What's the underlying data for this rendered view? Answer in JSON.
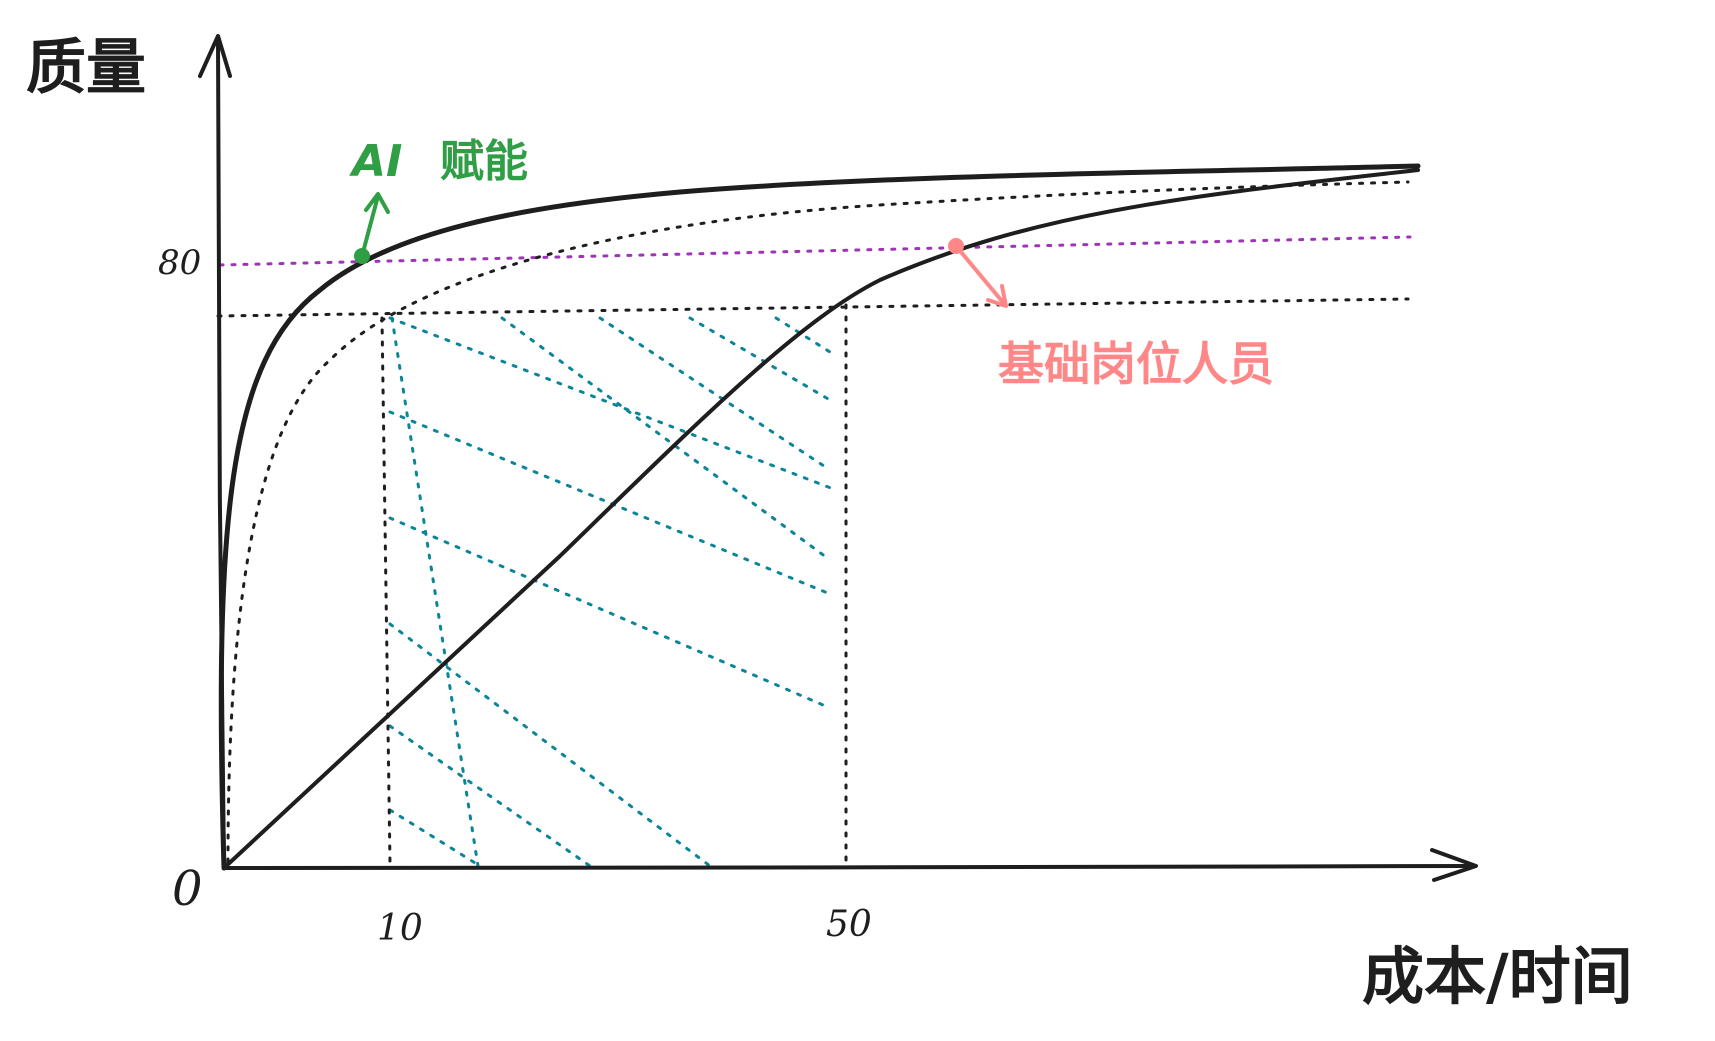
{
  "axes": {
    "y_title": "质量",
    "x_title": "成本/时间",
    "origin_label": "0",
    "y_tick_label": "80",
    "x_tick_labels": [
      "10",
      "50"
    ]
  },
  "annotations": {
    "ai": {
      "prefix": "AI",
      "text": "赋能",
      "color": "#2f9e44"
    },
    "basic": {
      "text": "基础岗位人员",
      "color": "#ff8787"
    }
  },
  "colors": {
    "stroke": "#1e1e1e",
    "threshold_line": "#9c36b5",
    "hatch": "#0c8599"
  }
}
